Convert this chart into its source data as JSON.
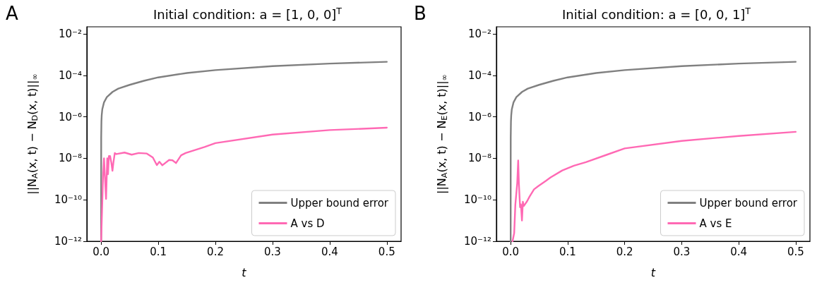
{
  "chart_data": [
    {
      "type": "line",
      "title": "Initial condition: a = [1, 0, 0]$^{T}$",
      "xlabel": "t",
      "ylabel": "||N$_{A}$(x, t) − N$_{D}$(x, t)||$_{∞}$",
      "annotations": [
        "A"
      ],
      "log": "y",
      "legend": "bottom right",
      "grid": false,
      "xlim": [
        -0.025,
        0.525
      ],
      "xticks": [
        {
          "value": 0,
          "label": "0.0"
        },
        0.1,
        0.2,
        0.3,
        0.4,
        0.5
      ],
      "ylim": [
        1e-12,
        0.022
      ],
      "yticks": [
        {
          "value": 1e-12,
          "label": "10⁻¹²"
        },
        {
          "value": 1e-10,
          "label": "10⁻¹⁰"
        },
        {
          "value": 1e-08,
          "label": "10⁻⁸"
        },
        {
          "value": 1e-06,
          "label": "10⁻⁶"
        },
        {
          "value": 0.0001,
          "label": "10⁻⁴"
        },
        {
          "value": 0.01,
          "label": "10⁻²"
        }
      ],
      "series": [
        {
          "name": "Upper bound error",
          "color": "#808080",
          "x": [
            1e-06,
            0.0001,
            0.0005,
            0.001,
            0.002,
            0.005,
            0.01,
            0.02,
            0.03,
            0.05,
            0.075,
            0.1,
            0.15,
            0.2,
            0.3,
            0.4,
            0.5
          ],
          "values": [
            1e-12,
            1e-07,
            6e-07,
            1.2e-06,
            2.3e-06,
            5e-06,
            9e-06,
            1.6e-05,
            2.3e-05,
            3.5e-05,
            5.5e-05,
            8e-05,
            0.00013,
            0.00018,
            0.00028,
            0.00037,
            0.00045
          ]
        },
        {
          "name": "A vs D",
          "color": "#ff69b4",
          "x": [
            0,
            0.0033,
            0.005,
            0.0066,
            0.0086,
            0.0107,
            0.012,
            0.0136,
            0.0156,
            0.0177,
            0.0198,
            0.0214,
            0.0239,
            0.0267,
            0.041,
            0.0535,
            0.066,
            0.08,
            0.0905,
            0.0975,
            0.102,
            0.107,
            0.119,
            0.125,
            0.131,
            0.14,
            0.148,
            0.181,
            0.2,
            0.3,
            0.4,
            0.5
          ],
          "values": [
            1e-12,
            1.3e-09,
            1e-08,
            1.3e-09,
            1.1e-10,
            1e-08,
            1.7e-09,
            1.3e-08,
            1.3e-08,
            6.5e-09,
            2.5e-09,
            6e-09,
            1.8e-08,
            1.6e-08,
            1.9e-08,
            1.5e-08,
            1.8e-08,
            1.7e-08,
            1.1e-08,
            4.7e-09,
            6.8e-09,
            4.6e-09,
            8.3e-09,
            8e-09,
            5.9e-09,
            1.4e-08,
            1.8e-08,
            3.5e-08,
            5.4e-08,
            1.4e-07,
            2.3e-07,
            3e-07
          ]
        }
      ]
    },
    {
      "type": "line",
      "title": "Initial condition: a = [0, 0, 1]$^{T}$",
      "xlabel": "t",
      "ylabel": "||N$_{A}$(x, t) − N$_{E}$(x, t)||$_{∞}$",
      "annotations": [
        "B"
      ],
      "log": "y",
      "legend": "bottom right",
      "grid": false,
      "xlim": [
        -0.025,
        0.525
      ],
      "xticks": [
        {
          "value": 0,
          "label": "0.0"
        },
        0.1,
        0.2,
        0.3,
        0.4,
        0.5
      ],
      "ylim": [
        1e-12,
        0.022
      ],
      "yticks": [
        {
          "value": 1e-12,
          "label": "10⁻¹²"
        },
        {
          "value": 1e-10,
          "label": "10⁻¹⁰"
        },
        {
          "value": 1e-08,
          "label": "10⁻⁸"
        },
        {
          "value": 1e-06,
          "label": "10⁻⁶"
        },
        {
          "value": 0.0001,
          "label": "10⁻⁴"
        },
        {
          "value": 0.01,
          "label": "10⁻²"
        }
      ],
      "series": [
        {
          "name": "Upper bound error",
          "color": "#808080",
          "x": [
            1e-06,
            0.0001,
            0.0005,
            0.001,
            0.002,
            0.005,
            0.01,
            0.02,
            0.03,
            0.05,
            0.075,
            0.1,
            0.15,
            0.2,
            0.3,
            0.4,
            0.5
          ],
          "values": [
            1e-12,
            1e-07,
            6e-07,
            1.2e-06,
            2.3e-06,
            5e-06,
            9e-06,
            1.6e-05,
            2.3e-05,
            3.5e-05,
            5.5e-05,
            8e-05,
            0.00013,
            0.00018,
            0.00028,
            0.00037,
            0.00045
          ]
        },
        {
          "name": "A vs E",
          "color": "#ff69b4",
          "x": [
            0.0033,
            0.0062,
            0.0082,
            0.0115,
            0.0132,
            0.0144,
            0.0165,
            0.018,
            0.0198,
            0.0214,
            0.023,
            0.0247,
            0.0288,
            0.033,
            0.041,
            0.049,
            0.062,
            0.07,
            0.0905,
            0.111,
            0.132,
            0.169,
            0.2,
            0.3,
            0.4,
            0.5
          ],
          "values": [
            1e-12,
            2.5e-12,
            5.8e-11,
            6.3e-10,
            7.9e-09,
            6.3e-10,
            4.4e-11,
            6e-11,
            1e-11,
            8e-11,
            5e-11,
            5.8e-11,
            8.5e-11,
            1.4e-10,
            3.2e-10,
            4.7e-10,
            8.3e-10,
            1.2e-09,
            2.6e-09,
            4.4e-09,
            6.5e-09,
            1.5e-08,
            3e-08,
            6.9e-08,
            1.2e-07,
            1.9e-07
          ]
        }
      ]
    }
  ]
}
